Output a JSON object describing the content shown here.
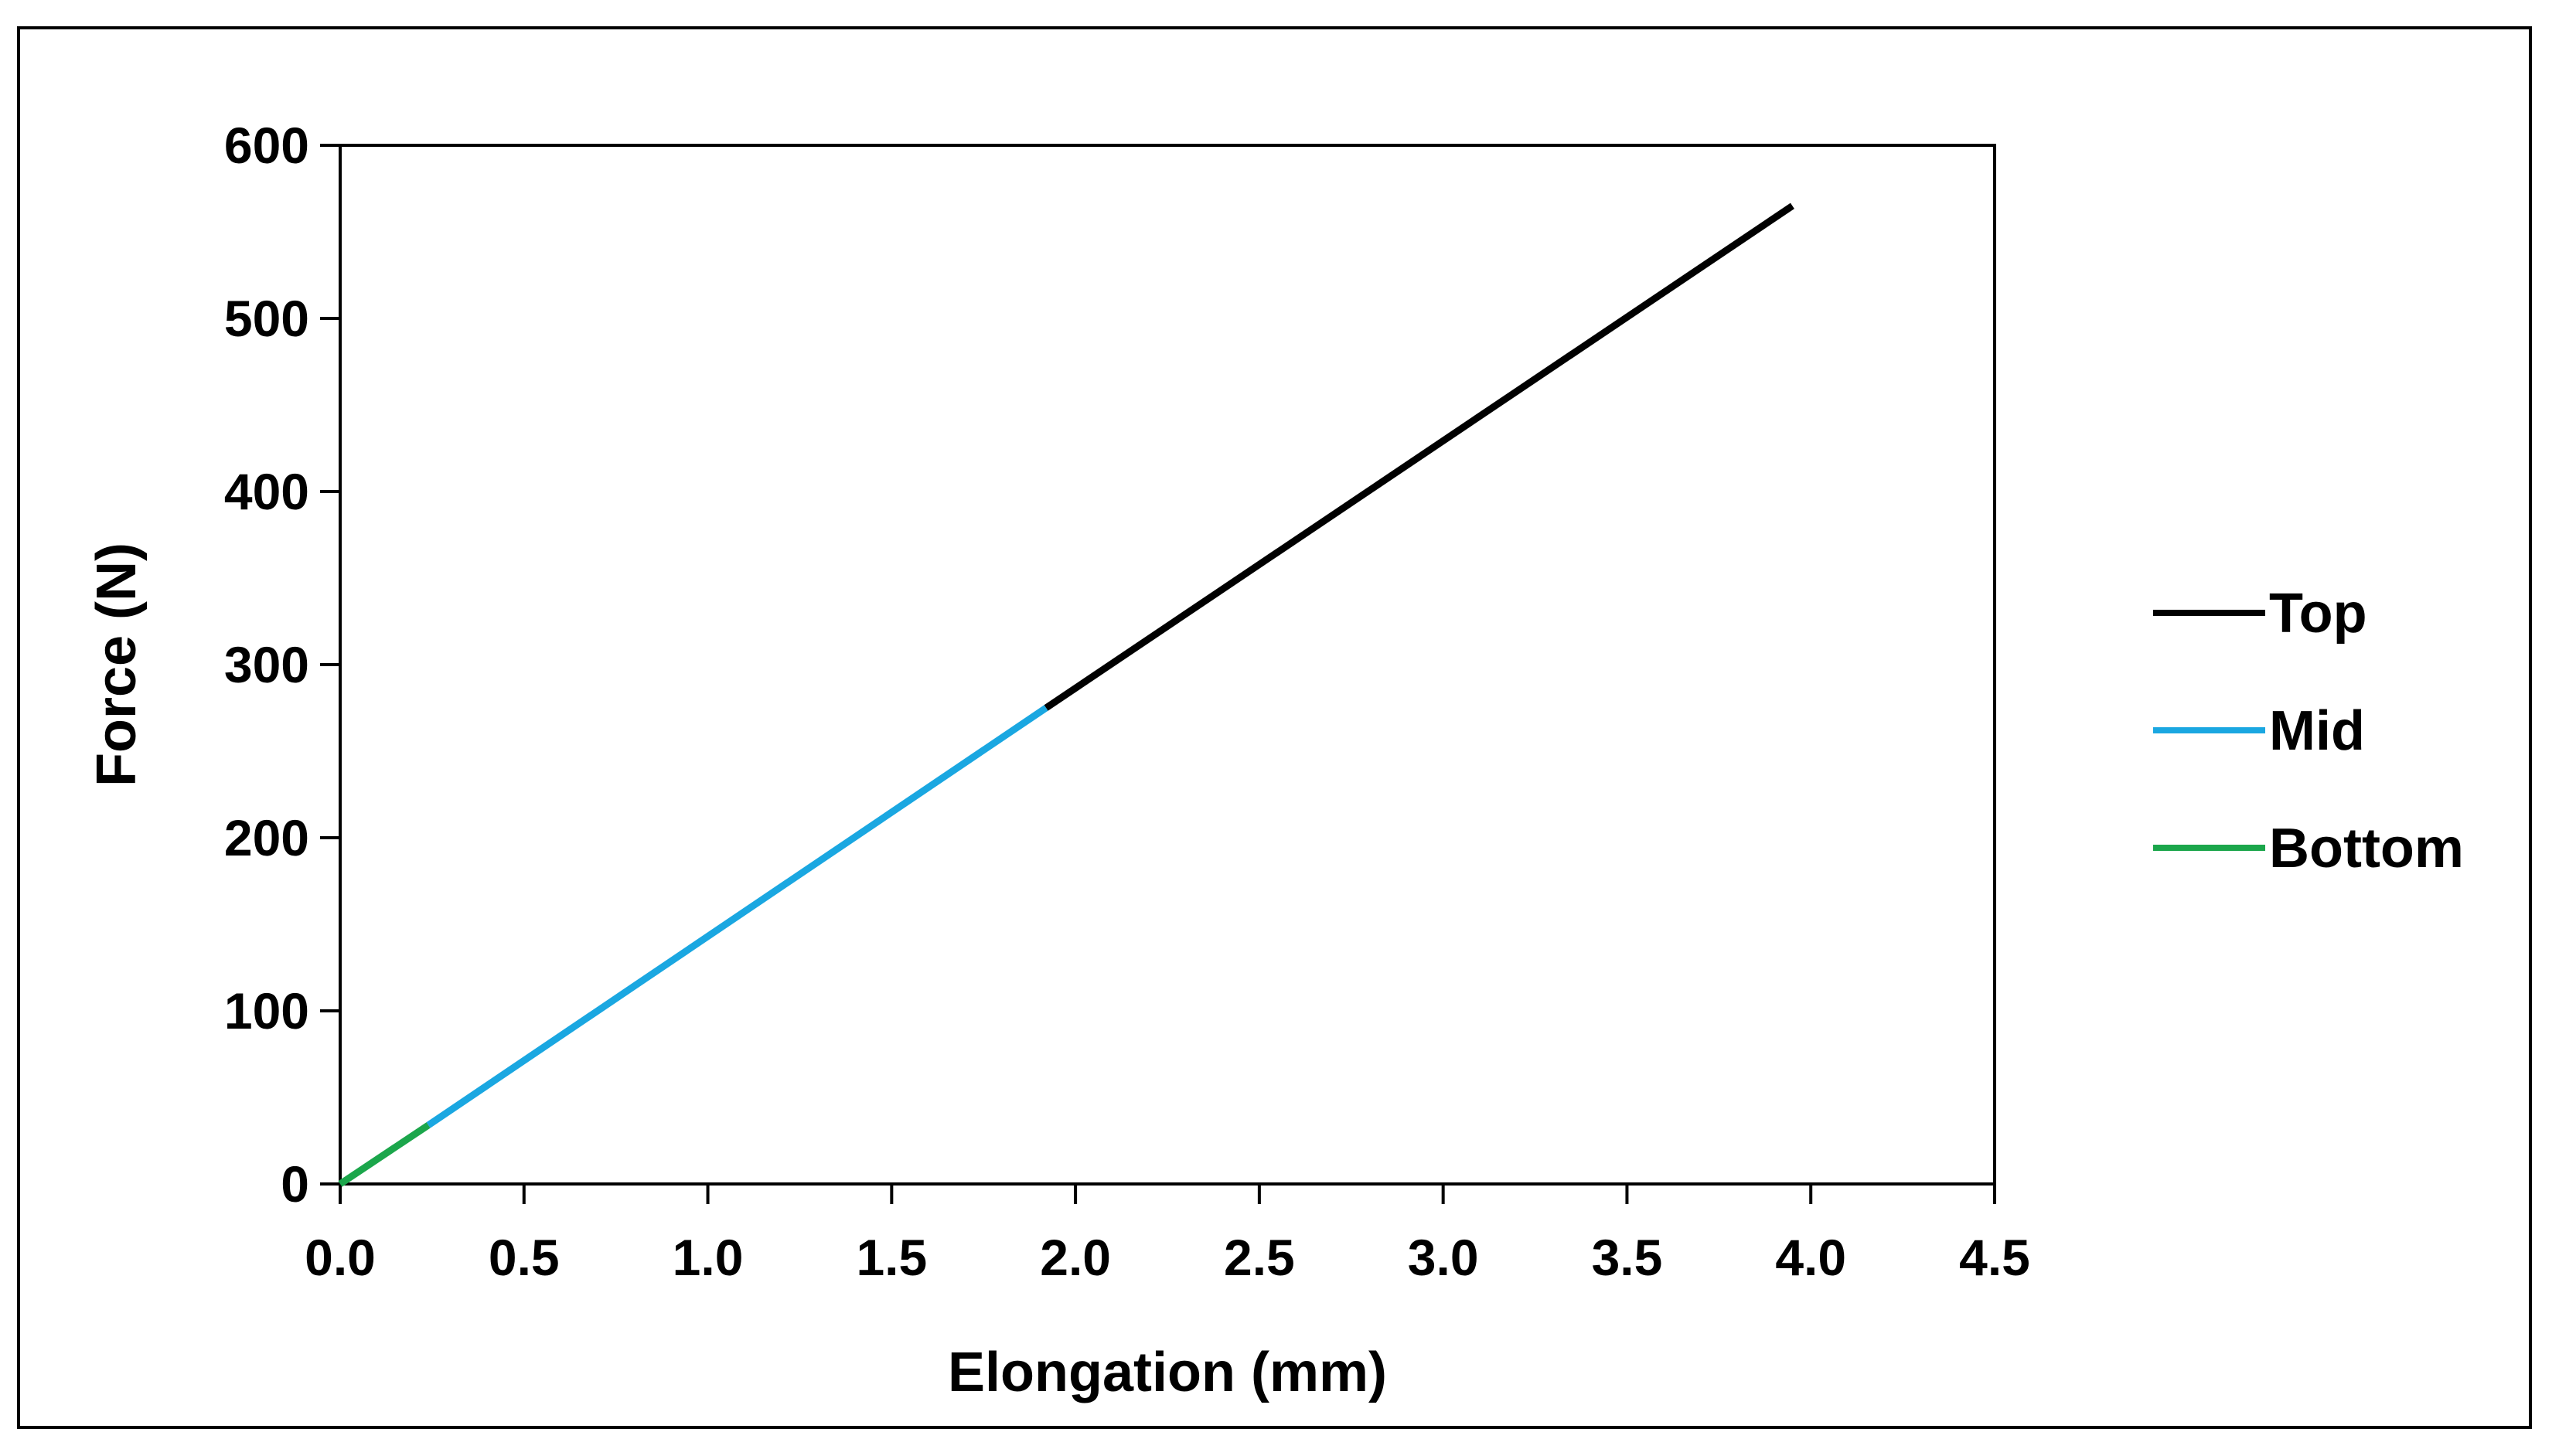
{
  "chart_data": {
    "type": "line",
    "title": "",
    "xlabel": "Elongation (mm)",
    "ylabel": "Force (N)",
    "xlim": [
      0,
      4.5
    ],
    "ylim": [
      0,
      600
    ],
    "x_ticks": [
      "0.0",
      "0.5",
      "1.0",
      "1.5",
      "2.0",
      "2.5",
      "3.0",
      "3.5",
      "4.0",
      "4.5"
    ],
    "y_ticks": [
      "0",
      "100",
      "200",
      "300",
      "400",
      "500",
      "600"
    ],
    "grid": false,
    "legend_position": "right",
    "series": [
      {
        "name": "Top",
        "color": "#000000",
        "x": [
          1.92,
          3.95
        ],
        "y": [
          275,
          565
        ]
      },
      {
        "name": "Mid",
        "color": "#1AA7E1",
        "x": [
          0.24,
          1.92
        ],
        "y": [
          34,
          275
        ]
      },
      {
        "name": "Bottom",
        "color": "#1BA64B",
        "x": [
          0.0,
          0.24
        ],
        "y": [
          0,
          34
        ]
      }
    ]
  }
}
